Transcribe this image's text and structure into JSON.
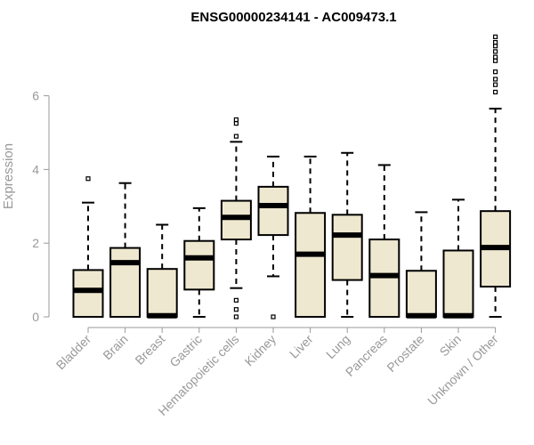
{
  "chart_data": {
    "type": "box",
    "title": "ENSG00000234141 - AC009473.1",
    "xlabel": "",
    "ylabel": "Expression",
    "ylim": [
      0,
      7.7
    ],
    "yticks": [
      0,
      2,
      4,
      6
    ],
    "box_fill": "#efe8d0",
    "categories": [
      "Bladder",
      "Brain",
      "Breast",
      "Gastric",
      "Hematopoietic cells",
      "Kidney",
      "Liver",
      "Lung",
      "Pancreas",
      "Prostate",
      "Skin",
      "Unknown / Other"
    ],
    "boxes": [
      {
        "whislo": 0.0,
        "q1": 0.0,
        "med": 0.72,
        "q3": 1.27,
        "whishi": 3.1,
        "fliers": [
          3.75
        ]
      },
      {
        "whislo": 0.0,
        "q1": 0.0,
        "med": 1.47,
        "q3": 1.87,
        "whishi": 3.63,
        "fliers": []
      },
      {
        "whislo": 0.0,
        "q1": 0.0,
        "med": 0.03,
        "q3": 1.3,
        "whishi": 2.5,
        "fliers": []
      },
      {
        "whislo": 0.0,
        "q1": 0.74,
        "med": 1.6,
        "q3": 2.06,
        "whishi": 2.95,
        "fliers": []
      },
      {
        "whislo": 0.78,
        "q1": 2.1,
        "med": 2.7,
        "q3": 3.15,
        "whishi": 4.75,
        "fliers": [
          0.0,
          0.2,
          0.45,
          4.9,
          5.25,
          5.35
        ]
      },
      {
        "whislo": 1.1,
        "q1": 2.22,
        "med": 3.02,
        "q3": 3.53,
        "whishi": 4.35,
        "fliers": [
          0.0
        ]
      },
      {
        "whislo": 0.0,
        "q1": 0.0,
        "med": 1.7,
        "q3": 2.82,
        "whishi": 4.35,
        "fliers": []
      },
      {
        "whislo": 0.0,
        "q1": 1.0,
        "med": 2.22,
        "q3": 2.77,
        "whishi": 4.45,
        "fliers": []
      },
      {
        "whislo": 0.0,
        "q1": 0.0,
        "med": 1.12,
        "q3": 2.1,
        "whishi": 4.12,
        "fliers": []
      },
      {
        "whislo": 0.0,
        "q1": 0.0,
        "med": 0.03,
        "q3": 1.25,
        "whishi": 2.84,
        "fliers": []
      },
      {
        "whislo": 0.0,
        "q1": 0.0,
        "med": 0.03,
        "q3": 1.8,
        "whishi": 3.18,
        "fliers": []
      },
      {
        "whislo": 0.0,
        "q1": 0.82,
        "med": 1.88,
        "q3": 2.87,
        "whishi": 5.65,
        "fliers": [
          6.1,
          6.3,
          6.45,
          6.65,
          6.95,
          7.05,
          7.2,
          7.35,
          7.45,
          7.6
        ]
      }
    ]
  }
}
